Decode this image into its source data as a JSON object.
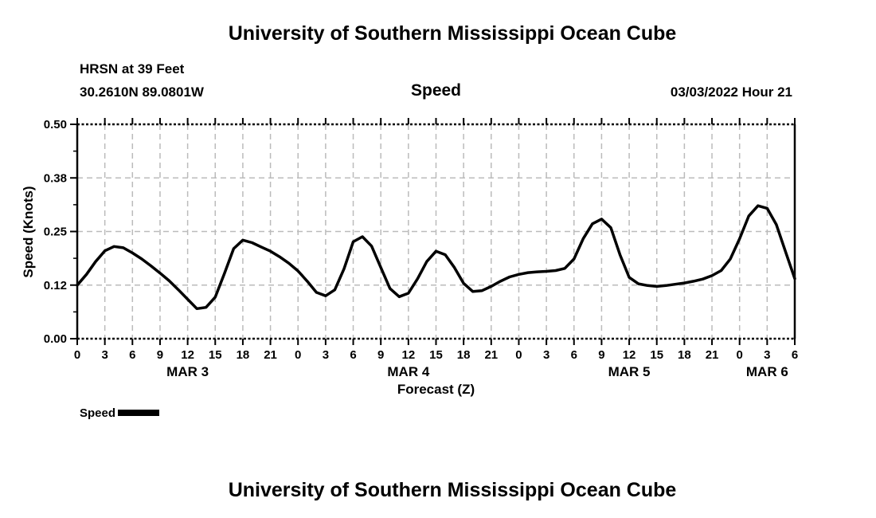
{
  "page": {
    "top_title": "University of Southern Mississippi Ocean Cube",
    "bottom_title": "University of Southern Mississippi Ocean Cube"
  },
  "header": {
    "station_line1": "HRSN at 39 Feet",
    "station_line2": "30.2610N  89.0801W",
    "plot_title": "Speed",
    "datetime": "03/03/2022 Hour 21"
  },
  "legend": {
    "label": "Speed"
  },
  "colors": {
    "line": "#000000",
    "grid": "#bbbbbb",
    "text": "#000000",
    "background": "#ffffff"
  },
  "chart_data": {
    "type": "line",
    "title": "Speed",
    "xlabel": "Forecast (Z)",
    "ylabel": "Speed (Knots)",
    "x_range_hours": [
      0,
      78
    ],
    "ylim": [
      0.0,
      0.5
    ],
    "ytick_values": [
      0.0,
      0.125,
      0.25,
      0.375,
      0.5
    ],
    "ytick_labels": [
      "0.00",
      "0.12",
      "0.25",
      "0.38",
      "0.50"
    ],
    "ytick_minor_values": [
      0.0625,
      0.1875,
      0.3125,
      0.4375
    ],
    "xtick_hours": [
      0,
      3,
      6,
      9,
      12,
      15,
      18,
      21,
      24,
      27,
      30,
      33,
      36,
      39,
      42,
      45,
      48,
      51,
      54,
      57,
      60,
      63,
      66,
      69,
      72,
      75,
      78
    ],
    "xtick_labels": [
      "0",
      "3",
      "6",
      "9",
      "12",
      "15",
      "18",
      "21",
      "0",
      "3",
      "6",
      "9",
      "12",
      "15",
      "18",
      "21",
      "0",
      "3",
      "6",
      "9",
      "12",
      "15",
      "18",
      "21",
      "0",
      "3",
      "6"
    ],
    "day_labels": [
      {
        "label": "MAR 3",
        "hour": 12
      },
      {
        "label": "MAR 4",
        "hour": 36
      },
      {
        "label": "MAR 5",
        "hour": 60
      },
      {
        "label": "MAR 6",
        "hour": 75
      }
    ],
    "grid": true,
    "legend_position": "bottom-left",
    "series": [
      {
        "name": "Speed",
        "x_hours": [
          0,
          1,
          2,
          3,
          4,
          5,
          6,
          7,
          8,
          9,
          10,
          11,
          12,
          13,
          14,
          15,
          16,
          17,
          18,
          19,
          20,
          21,
          22,
          23,
          24,
          25,
          26,
          27,
          28,
          29,
          30,
          31,
          32,
          33,
          34,
          35,
          36,
          37,
          38,
          39,
          40,
          41,
          42,
          43,
          44,
          45,
          46,
          47,
          48,
          49,
          50,
          51,
          52,
          53,
          54,
          55,
          56,
          57,
          58,
          59,
          60,
          61,
          62,
          63,
          64,
          65,
          66,
          67,
          68,
          69,
          70,
          71,
          72,
          73,
          74,
          75,
          76,
          77,
          78
        ],
        "values": [
          0.125,
          0.15,
          0.18,
          0.205,
          0.215,
          0.212,
          0.2,
          0.186,
          0.17,
          0.153,
          0.135,
          0.114,
          0.092,
          0.07,
          0.073,
          0.097,
          0.152,
          0.21,
          0.23,
          0.224,
          0.214,
          0.204,
          0.191,
          0.176,
          0.158,
          0.134,
          0.108,
          0.1,
          0.114,
          0.163,
          0.226,
          0.238,
          0.216,
          0.166,
          0.117,
          0.098,
          0.106,
          0.14,
          0.18,
          0.204,
          0.196,
          0.166,
          0.129,
          0.11,
          0.112,
          0.122,
          0.134,
          0.144,
          0.15,
          0.154,
          0.156,
          0.157,
          0.159,
          0.164,
          0.186,
          0.233,
          0.268,
          0.279,
          0.259,
          0.196,
          0.143,
          0.128,
          0.124,
          0.122,
          0.124,
          0.127,
          0.13,
          0.134,
          0.139,
          0.147,
          0.159,
          0.186,
          0.233,
          0.286,
          0.31,
          0.304,
          0.266,
          0.203,
          0.14
        ]
      }
    ]
  }
}
